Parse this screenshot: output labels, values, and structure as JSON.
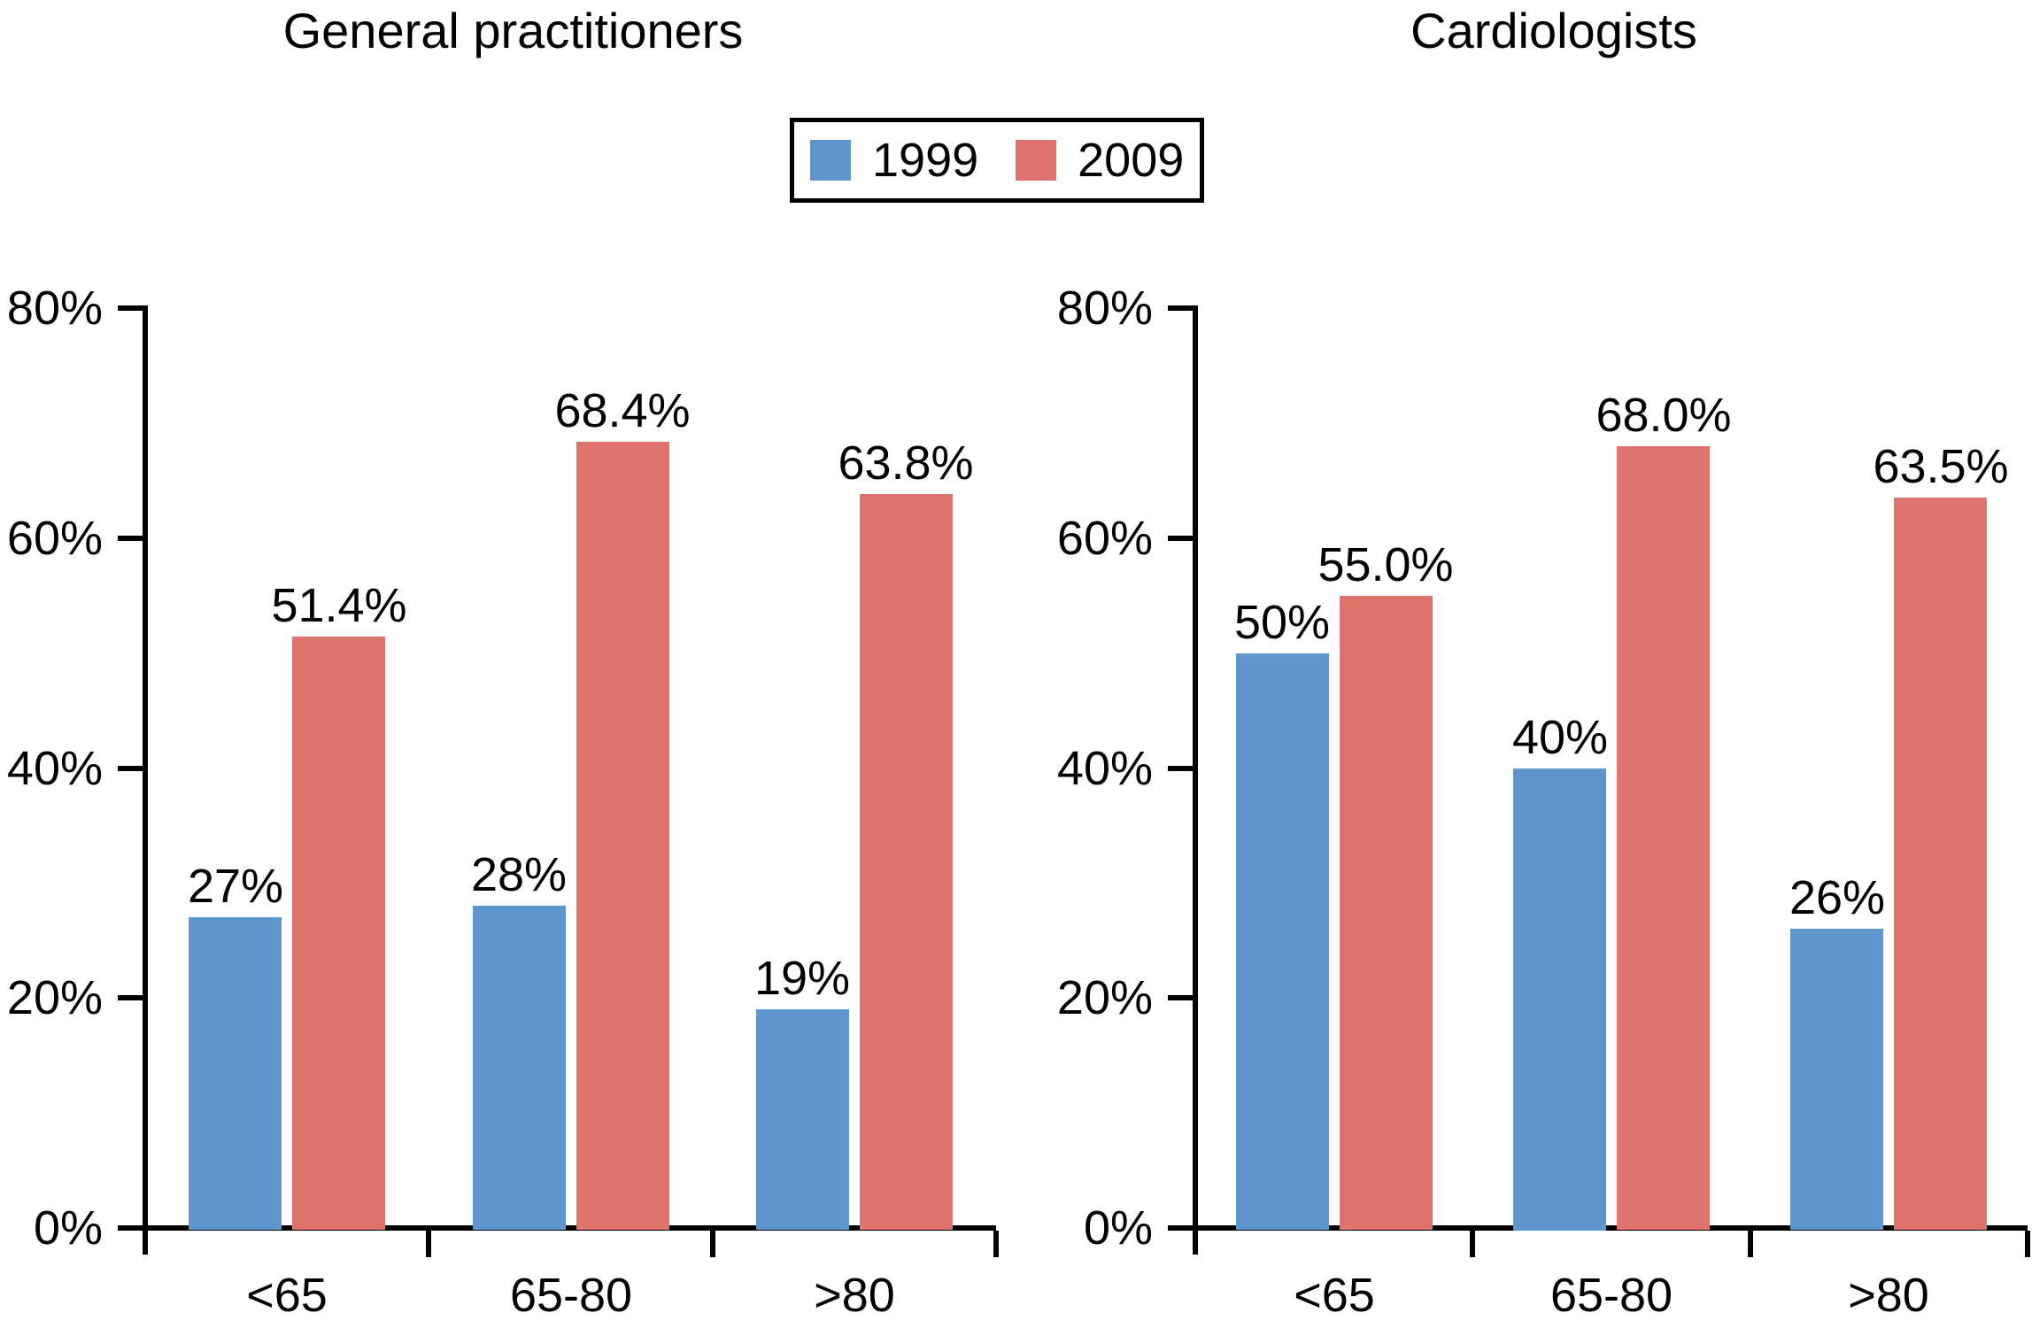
{
  "figure": {
    "background": "#ffffff",
    "text_color": "#000000",
    "axis_color": "#000000"
  },
  "legend": {
    "position": "top-center",
    "shared": true,
    "items": [
      {
        "label": "1999",
        "color": "#5E96CD"
      },
      {
        "label": "2009",
        "color": "#DF746F"
      }
    ]
  },
  "chart_data": [
    {
      "type": "bar",
      "title": "General practitioners",
      "categories": [
        "<65",
        "65-80",
        ">80"
      ],
      "series": [
        {
          "name": "1999",
          "color": "#5E96CD",
          "values": [
            27,
            28,
            19
          ],
          "data_labels": [
            "27%",
            "28%",
            "19%"
          ]
        },
        {
          "name": "2009",
          "color": "#DF746F",
          "values": [
            51.4,
            68.4,
            63.8
          ],
          "data_labels": [
            "51.4%",
            "68.4%",
            "63.8%"
          ]
        }
      ],
      "xlabel": "",
      "ylabel": "",
      "ylim": [
        0,
        80
      ],
      "yticks": [
        {
          "value": 0,
          "label": "0%"
        },
        {
          "value": 20,
          "label": "20%"
        },
        {
          "value": 40,
          "label": "40%"
        },
        {
          "value": 60,
          "label": "60%"
        },
        {
          "value": 80,
          "label": "80%"
        }
      ],
      "grid": false
    },
    {
      "type": "bar",
      "title": "Cardiologists",
      "categories": [
        "<65",
        "65-80",
        ">80"
      ],
      "series": [
        {
          "name": "1999",
          "color": "#5E96CD",
          "values": [
            50,
            40,
            26
          ],
          "data_labels": [
            "50%",
            "40%",
            "26%"
          ]
        },
        {
          "name": "2009",
          "color": "#DF746F",
          "values": [
            55.0,
            68.0,
            63.5
          ],
          "data_labels": [
            "55.0%",
            "68.0%",
            "63.5%"
          ]
        }
      ],
      "xlabel": "",
      "ylabel": "",
      "ylim": [
        0,
        80
      ],
      "yticks": [
        {
          "value": 0,
          "label": "0%"
        },
        {
          "value": 20,
          "label": "20%"
        },
        {
          "value": 40,
          "label": "40%"
        },
        {
          "value": 60,
          "label": "60%"
        },
        {
          "value": 80,
          "label": "80%"
        }
      ],
      "grid": false
    }
  ]
}
